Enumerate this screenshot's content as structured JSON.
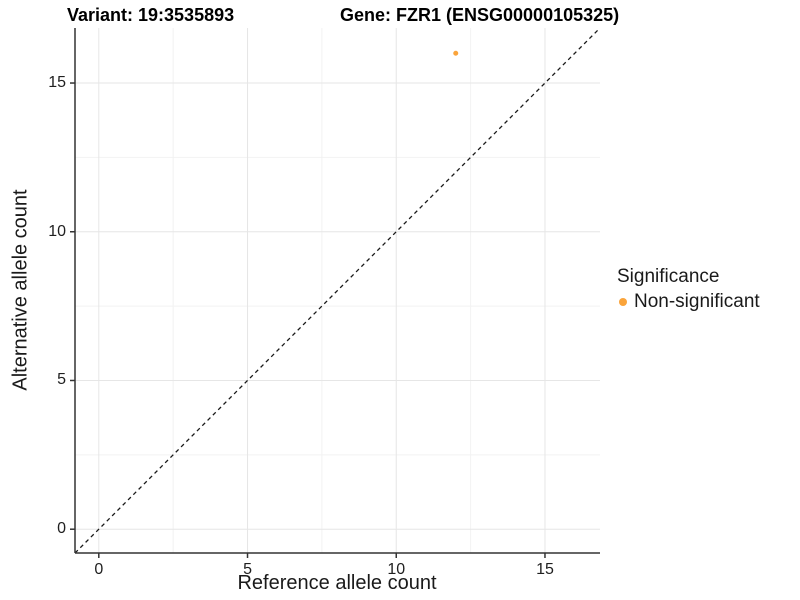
{
  "header": {
    "variant_title": "Variant: 19:3535893",
    "gene_title": "Gene: FZR1 (ENSG00000105325)"
  },
  "legend": {
    "title": "Significance",
    "items": [
      {
        "label": "Non-significant",
        "color": "#FAA43B"
      }
    ]
  },
  "chart_data": {
    "type": "scatter",
    "title": "Variant: 19:3535893 / Gene: FZR1 (ENSG00000105325)",
    "xlabel": "Reference allele count",
    "ylabel": "Alternative allele count",
    "xlim": [
      -0.8,
      16.85
    ],
    "ylim": [
      -0.8,
      16.85
    ],
    "x_ticks": [
      0,
      5,
      10,
      15
    ],
    "y_ticks": [
      0,
      5,
      10,
      15
    ],
    "minor_ticks": [
      2.5,
      7.5,
      12.5
    ],
    "grid": true,
    "legend_position": "right",
    "series": [
      {
        "name": "Non-significant",
        "color": "#FAA43B",
        "point_radius": 2.5,
        "points": [
          {
            "x": 12,
            "y": 16
          }
        ]
      }
    ],
    "reference_line": {
      "type": "identity y=x",
      "style": "dashed",
      "color": "#1a1a1a"
    }
  },
  "colors": {
    "background": "#FFFFFF",
    "grid_major": "#E6E6E6",
    "grid_minor": "#F2F2F2",
    "axis_line": "#333333",
    "tick_text": "#1f1f1f",
    "point_orange": "#FAA43B"
  }
}
